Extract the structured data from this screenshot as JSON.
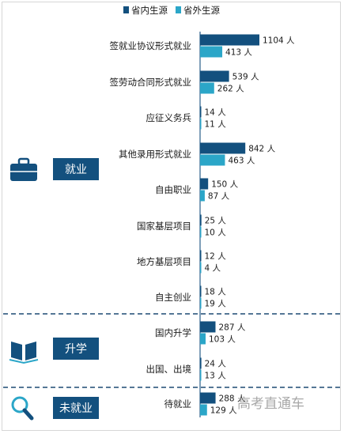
{
  "chart_data": {
    "type": "bar",
    "orientation": "horizontal",
    "legend_position": "top",
    "unit": "人",
    "series": [
      {
        "name": "省内生源",
        "color": "#13507e"
      },
      {
        "name": "省外生源",
        "color": "#2ba6c8"
      }
    ],
    "groups": [
      {
        "label": "就业",
        "icon": "briefcase-icon",
        "categories": [
          "签就业协议形式就业",
          "签劳动合同形式就业",
          "应征义务兵",
          "其他录用形式就业",
          "自由职业",
          "国家基层项目",
          "地方基层项目",
          "自主创业"
        ],
        "values": [
          [
            1104,
            413
          ],
          [
            539,
            262
          ],
          [
            14,
            11
          ],
          [
            842,
            463
          ],
          [
            150,
            87
          ],
          [
            25,
            10
          ],
          [
            12,
            4
          ],
          [
            18,
            19
          ]
        ]
      },
      {
        "label": "升学",
        "icon": "open-book-icon",
        "categories": [
          "国内升学",
          "出国、出境"
        ],
        "values": [
          [
            287,
            103
          ],
          [
            24,
            13
          ]
        ]
      },
      {
        "label": "未就业",
        "icon": "magnifier-icon",
        "categories": [
          "待就业"
        ],
        "values": [
          [
            288,
            129
          ]
        ]
      }
    ]
  },
  "watermark": "高考直通车"
}
